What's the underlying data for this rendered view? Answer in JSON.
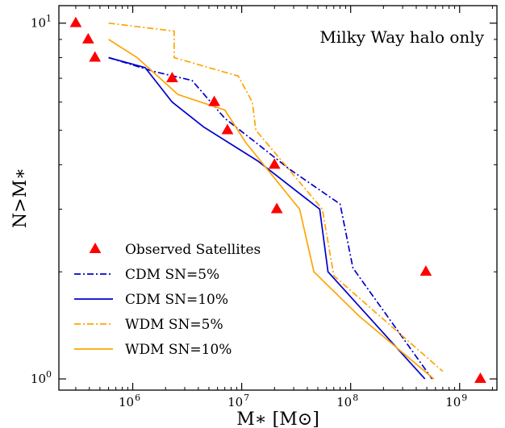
{
  "chart_data": {
    "type": "line",
    "annotation": "Milky Way halo only",
    "xlabel": "M∗ [M⊙]",
    "ylabel": "N>M∗",
    "xscale": "log",
    "yscale": "log",
    "xlim": [
      210000,
      2200000000
    ],
    "ylim": [
      0.93,
      11.2
    ],
    "x_ticks": [
      {
        "value": 1000000,
        "label": "10",
        "exp": "6"
      },
      {
        "value": 10000000,
        "label": "10",
        "exp": "7"
      },
      {
        "value": 100000000,
        "label": "10",
        "exp": "8"
      },
      {
        "value": 1000000000,
        "label": "10",
        "exp": "9"
      }
    ],
    "y_ticks": [
      {
        "value": 1,
        "label": "10",
        "exp": "0"
      },
      {
        "value": 10,
        "label": "10",
        "exp": "1"
      }
    ],
    "grid": false,
    "legend_position": "bottom-left",
    "scatter": {
      "name": "Observed Satellites",
      "color": "#ff0000",
      "marker": "triangle",
      "points": [
        {
          "x": 300000,
          "y": 10
        },
        {
          "x": 390000,
          "y": 9
        },
        {
          "x": 450000,
          "y": 8
        },
        {
          "x": 2300000,
          "y": 7
        },
        {
          "x": 5600000,
          "y": 6
        },
        {
          "x": 7400000,
          "y": 5
        },
        {
          "x": 20000000,
          "y": 4
        },
        {
          "x": 21000000,
          "y": 3
        },
        {
          "x": 490000000,
          "y": 2
        },
        {
          "x": 1550000000,
          "y": 1
        }
      ]
    },
    "series": [
      {
        "name": "CDM SN=5%",
        "color": "#0000cc",
        "dash": "dashdot",
        "x": [
          600000,
          1600000,
          3500000,
          7000000,
          15000000,
          27000000,
          80000000,
          105000000,
          560000000
        ],
        "y": [
          8.0,
          7.3,
          6.9,
          5.4,
          4.5,
          3.9,
          3.1,
          2.05,
          1.0
        ]
      },
      {
        "name": "CDM SN=10%",
        "color": "#0000cc",
        "dash": "solid",
        "x": [
          600000,
          1300000,
          2300000,
          4500000,
          14000000,
          52000000,
          62000000,
          480000000
        ],
        "y": [
          8.0,
          7.5,
          6.0,
          5.1,
          4.1,
          3.0,
          2.0,
          1.0
        ]
      },
      {
        "name": "WDM SN=5%",
        "color": "#ffa500",
        "dash": "dashdot",
        "x": [
          600000,
          2400000,
          2400000,
          9300000,
          12500000,
          13500000,
          55000000,
          70000000,
          700000000
        ],
        "y": [
          10.0,
          9.5,
          8.0,
          7.1,
          6.0,
          5.0,
          3.0,
          1.95,
          1.05
        ]
      },
      {
        "name": "WDM SN=10%",
        "color": "#ffa500",
        "dash": "solid",
        "x": [
          600000,
          1100000,
          2600000,
          7000000,
          11000000,
          34000000,
          46000000,
          120000000,
          580000000
        ],
        "y": [
          9.0,
          8.0,
          6.3,
          5.7,
          4.6,
          3.0,
          2.0,
          1.5,
          1.0
        ]
      }
    ]
  }
}
